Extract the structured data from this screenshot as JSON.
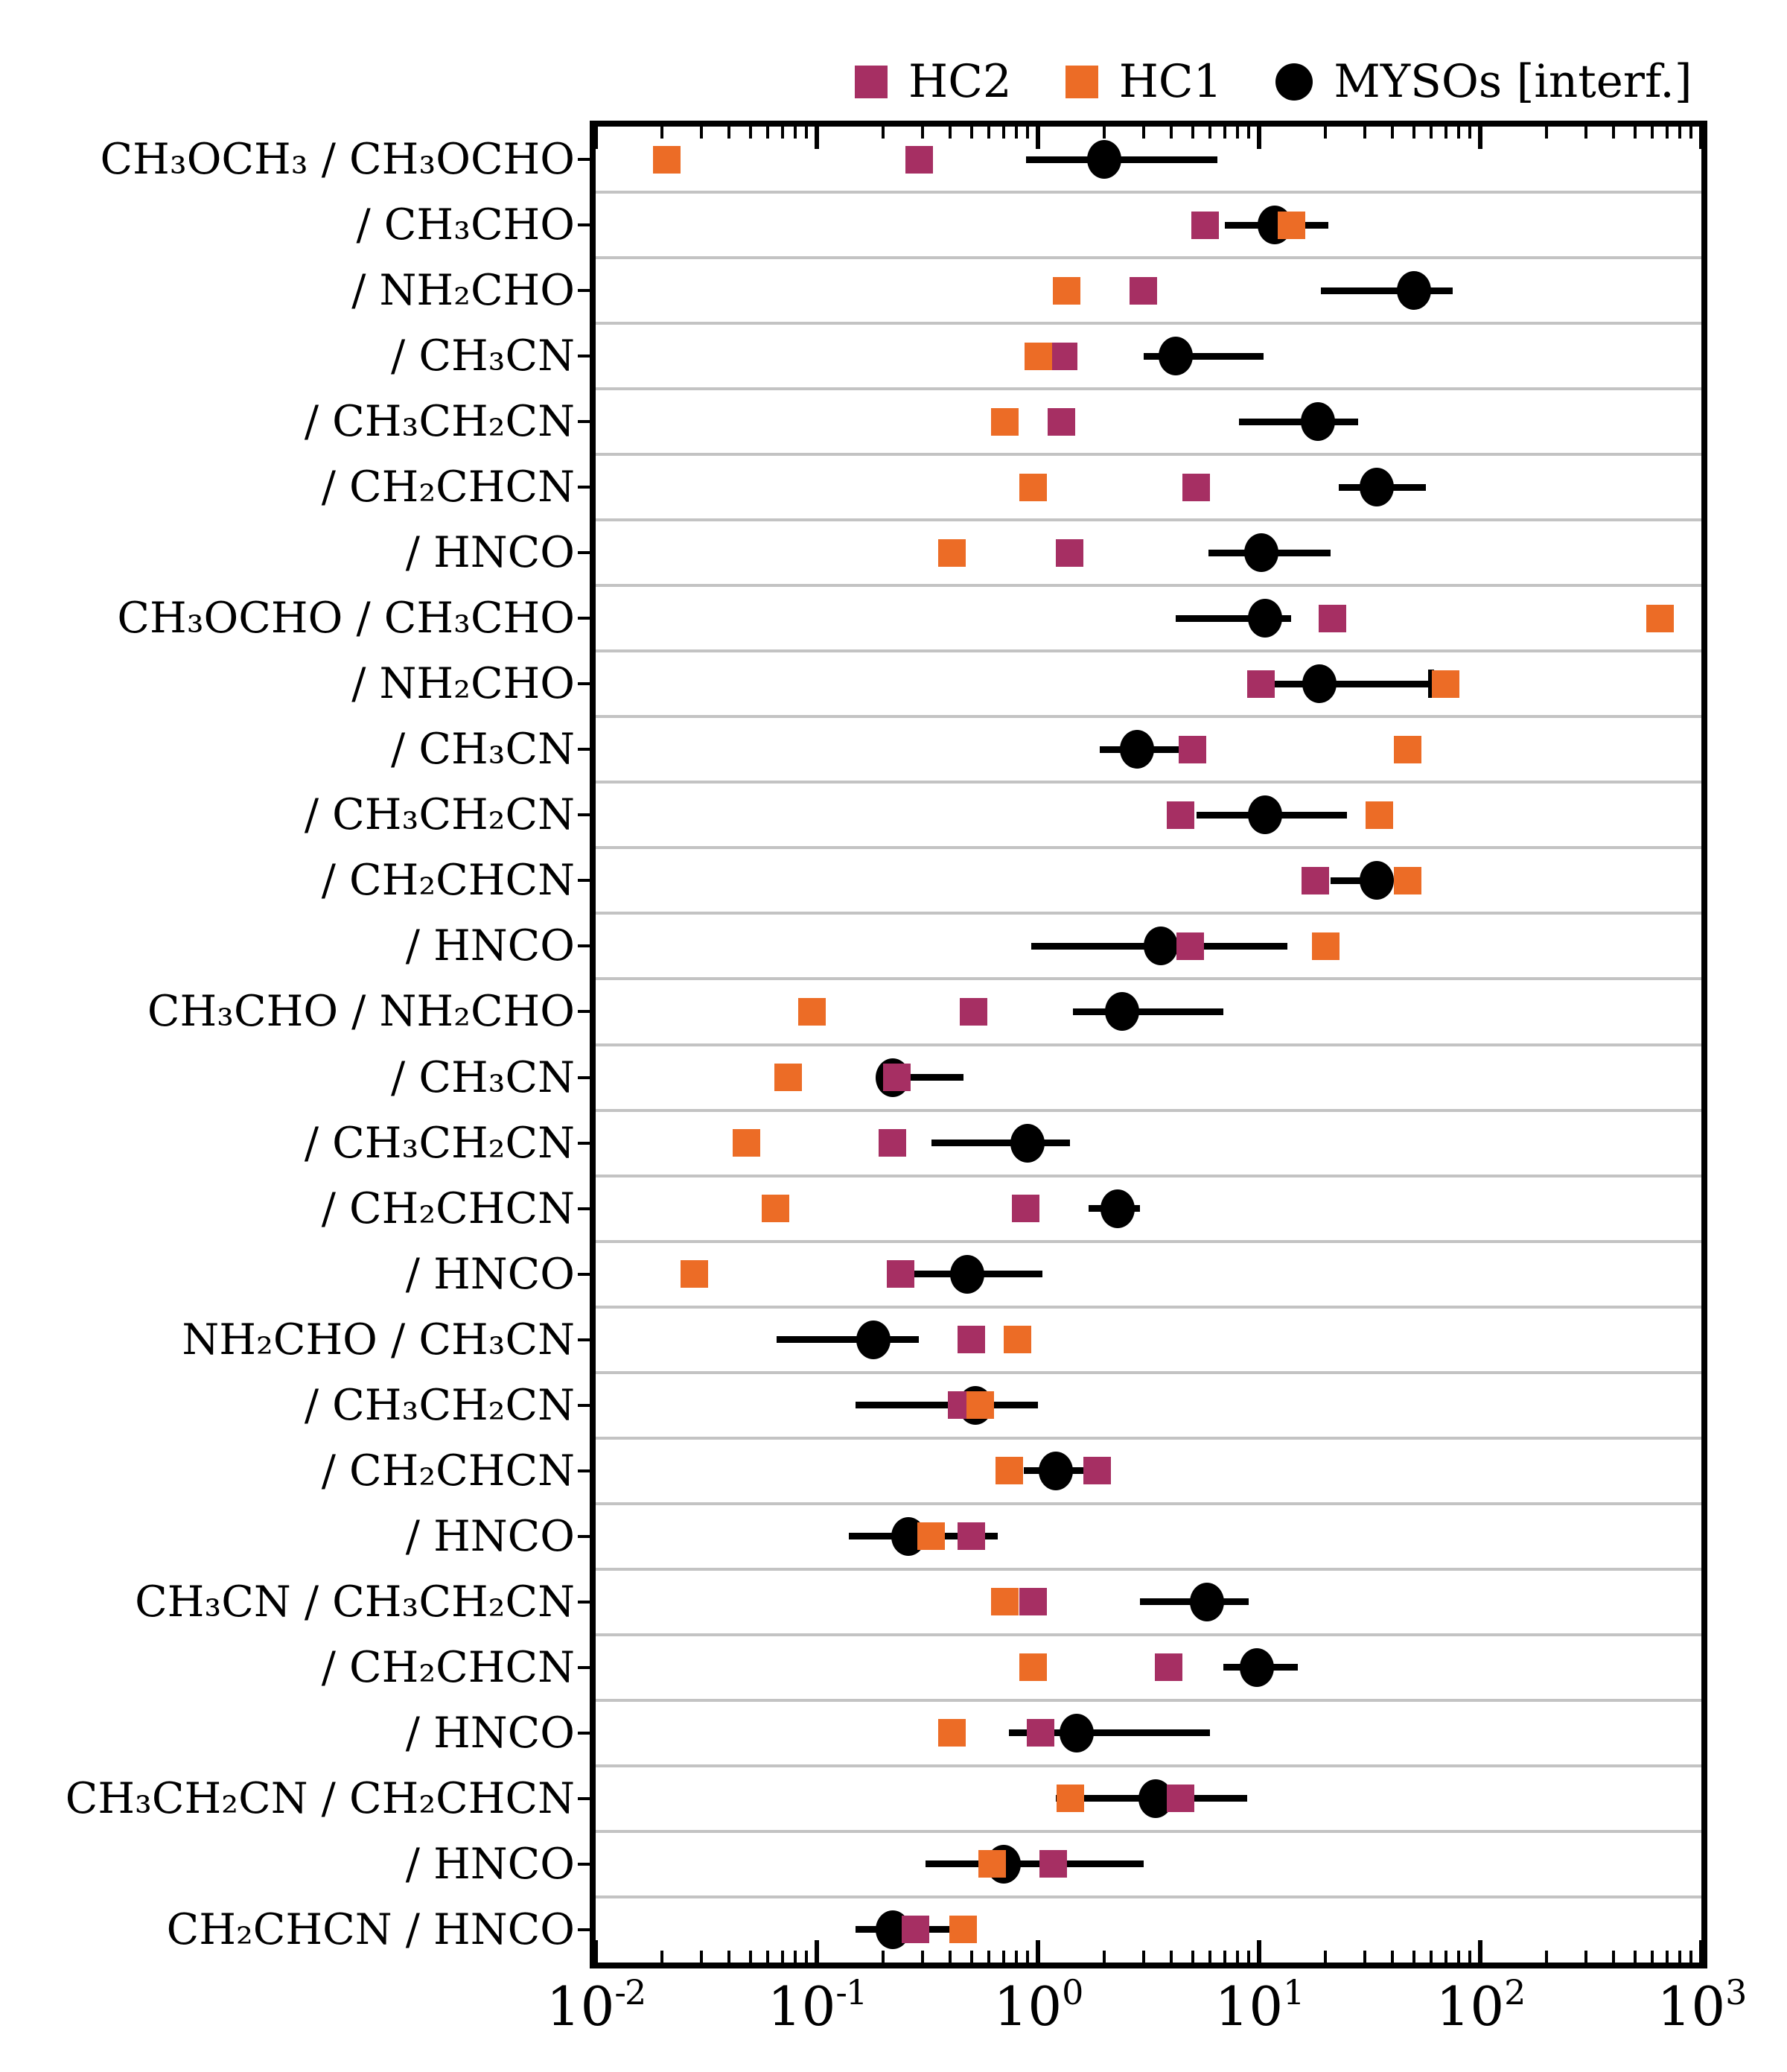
{
  "legend": {
    "items": [
      {
        "label": "HC2",
        "marker": "square",
        "color": "#A62F63"
      },
      {
        "label": "HC1",
        "marker": "square",
        "color": "#EC6C26"
      },
      {
        "label": "MYSOs [interf.]",
        "marker": "circle",
        "color": "#000000"
      }
    ]
  },
  "colors": {
    "hc2": "#A62F63",
    "hc1": "#EC6C26",
    "myso": "#000000",
    "gridline": "#c3c3c3",
    "frame": "#000000"
  },
  "chart_data": {
    "type": "scatter",
    "x_scale": "log",
    "x_range": [
      0.01,
      1000
    ],
    "x_tick_exponents": [
      -2,
      -1,
      0,
      1,
      2,
      3
    ],
    "grid": "horizontal row separators on",
    "legend_position": "top",
    "categories": [
      "CH₃OCH₃ / CH₃OCHO",
      "/ CH₃CHO",
      "/ NH₂CHO",
      "/ CH₃CN",
      "/ CH₃CH₂CN",
      "/ CH₂CHCN",
      "/ HNCO",
      "CH₃OCHO / CH₃CHO",
      "/ NH₂CHO",
      "/ CH₃CN",
      "/ CH₃CH₂CN",
      "/ CH₂CHCN",
      "/ HNCO",
      "CH₃CHO / NH₂CHO",
      "/ CH₃CN",
      "/ CH₃CH₂CN",
      "/ CH₂CHCN",
      "/ HNCO",
      "NH₂CHO / CH₃CN",
      "/ CH₃CH₂CN",
      "/ CH₂CHCN",
      "/ HNCO",
      "CH₃CN / CH₃CH₂CN",
      "/ CH₂CHCN",
      "/ HNCO",
      "CH₃CH₂CN / CH₂CHCN",
      "/ HNCO",
      "CH₂CHCN / HNCO"
    ],
    "series": [
      {
        "name": "HC2",
        "marker": "square",
        "color": "#A62F63",
        "values": [
          0.29,
          5.7,
          3.0,
          1.31,
          1.28,
          5.2,
          1.39,
          21.5,
          10.2,
          5.0,
          4.4,
          18.0,
          4.9,
          0.51,
          0.23,
          0.22,
          0.88,
          0.24,
          0.5,
          0.45,
          1.85,
          0.5,
          0.95,
          3.9,
          1.03,
          4.4,
          1.17,
          0.28
        ]
      },
      {
        "name": "HC1",
        "marker": "square",
        "color": "#EC6C26",
        "values": [
          0.021,
          14.0,
          1.35,
          1.0,
          0.71,
          0.95,
          0.41,
          650,
          70,
          47,
          35,
          47,
          20,
          0.095,
          0.074,
          0.048,
          0.065,
          0.028,
          0.81,
          0.55,
          0.74,
          0.33,
          0.71,
          0.95,
          0.41,
          1.4,
          0.62,
          0.46
        ]
      },
      {
        "name": "MYSOs [interf.]",
        "marker": "circle",
        "color": "#000000",
        "values": [
          2.0,
          11.8,
          50,
          4.2,
          18.5,
          34,
          10.2,
          10.6,
          18.8,
          2.8,
          10.6,
          34,
          3.6,
          2.4,
          0.22,
          0.9,
          2.3,
          0.48,
          0.18,
          0.52,
          1.2,
          0.26,
          5.8,
          9.8,
          1.5,
          3.4,
          0.7,
          0.22
        ],
        "err_lo": [
          0.88,
          7.0,
          19,
          3.0,
          8.1,
          23,
          5.9,
          4.2,
          10,
          1.9,
          5.2,
          21,
          0.93,
          1.44,
          0.2,
          0.33,
          1.7,
          0.27,
          0.066,
          0.15,
          0.86,
          0.14,
          2.9,
          6.9,
          0.74,
          1.2,
          0.31,
          0.15
        ],
        "err_hi": [
          6.5,
          20.5,
          75,
          10.5,
          28,
          57,
          21,
          14,
          60,
          4.6,
          25,
          40,
          13.4,
          6.9,
          0.46,
          1.4,
          2.9,
          1.05,
          0.29,
          1.0,
          1.6,
          0.66,
          9.0,
          15,
          6.0,
          8.8,
          3.0,
          0.4
        ],
        "cap_hi_rows": [
          8
        ]
      }
    ]
  }
}
